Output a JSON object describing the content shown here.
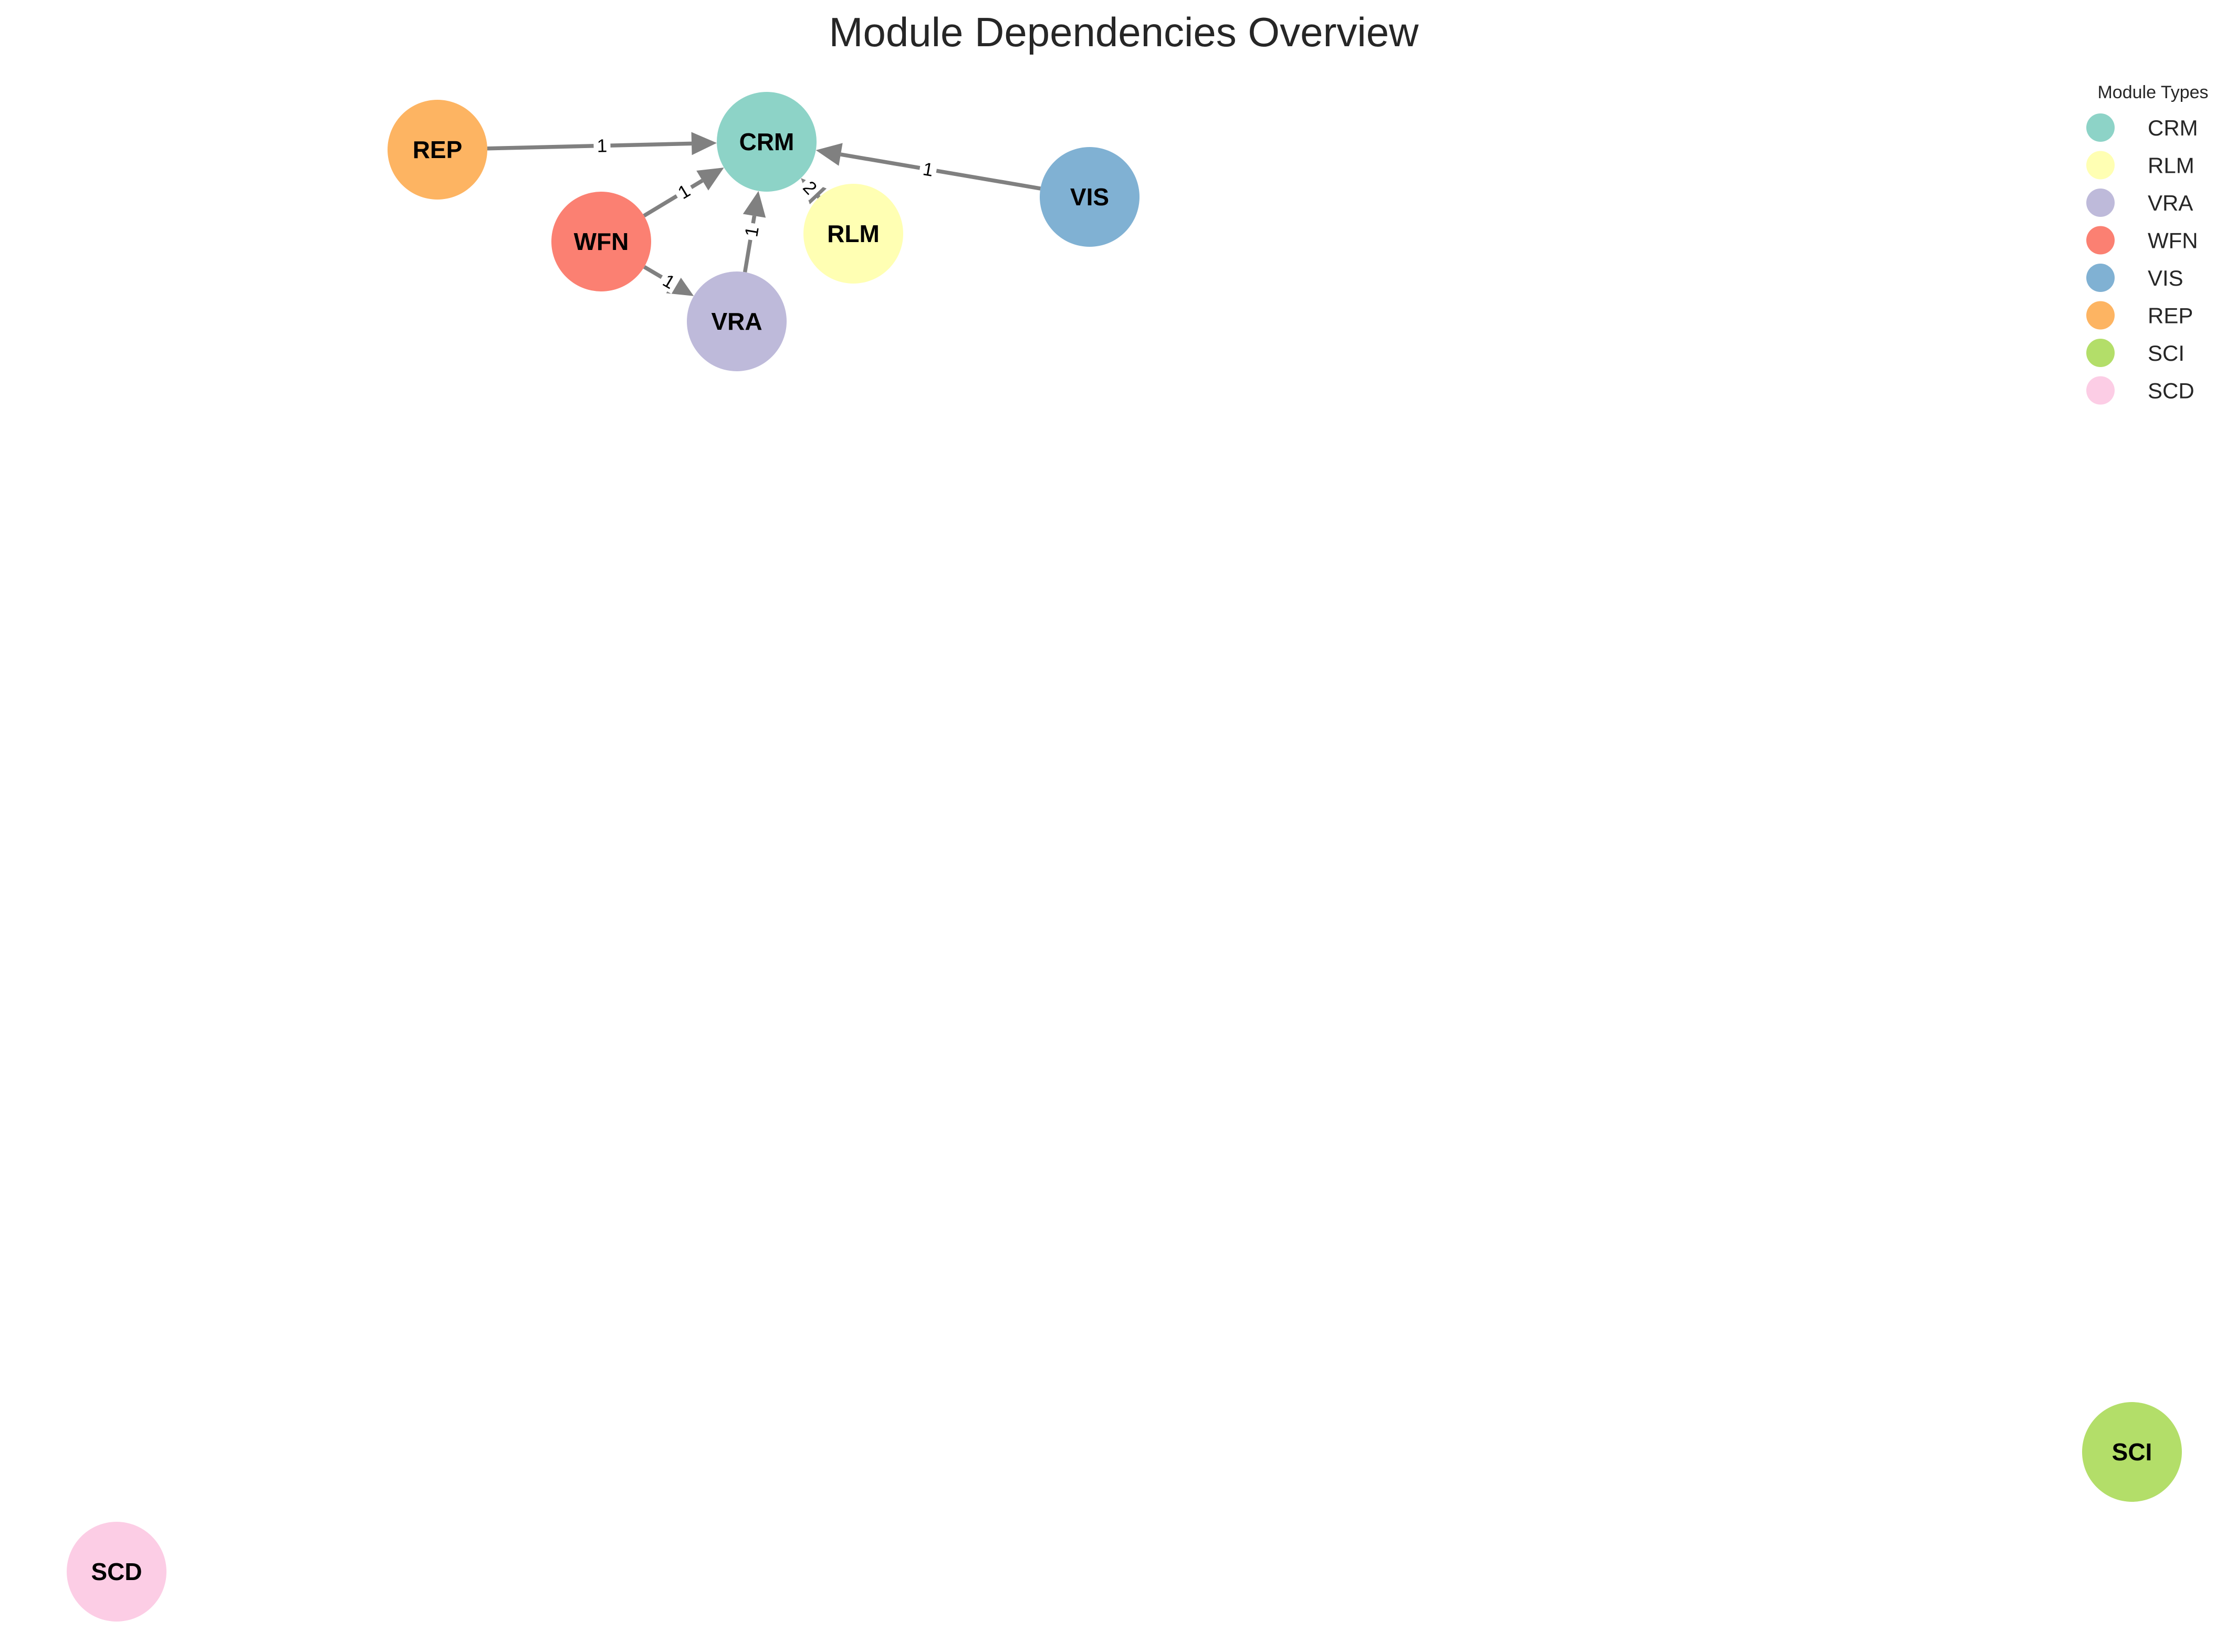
{
  "title": "Module Dependencies Overview",
  "legend": {
    "title": "Module Types",
    "items": [
      {
        "label": "CRM",
        "color": "#8dd3c7"
      },
      {
        "label": "RLM",
        "color": "#ffffb3"
      },
      {
        "label": "VRA",
        "color": "#bebada"
      },
      {
        "label": "WFN",
        "color": "#fb8072"
      },
      {
        "label": "VIS",
        "color": "#80b1d3"
      },
      {
        "label": "REP",
        "color": "#fdb462"
      },
      {
        "label": "SCI",
        "color": "#b3de69"
      },
      {
        "label": "SCD",
        "color": "#fccde5"
      }
    ]
  },
  "nodes": [
    {
      "id": "CRM",
      "label": "CRM",
      "color": "#8dd3c7"
    },
    {
      "id": "RLM",
      "label": "RLM",
      "color": "#ffffb3"
    },
    {
      "id": "VRA",
      "label": "VRA",
      "color": "#bebada"
    },
    {
      "id": "WFN",
      "label": "WFN",
      "color": "#fb8072"
    },
    {
      "id": "VIS",
      "label": "VIS",
      "color": "#80b1d3"
    },
    {
      "id": "REP",
      "label": "REP",
      "color": "#fdb462"
    },
    {
      "id": "SCI",
      "label": "SCI",
      "color": "#b3de69"
    },
    {
      "id": "SCD",
      "label": "SCD",
      "color": "#fccde5"
    }
  ],
  "edges": [
    {
      "from": "REP",
      "to": "CRM",
      "label": "1"
    },
    {
      "from": "VIS",
      "to": "CRM",
      "label": "1"
    },
    {
      "from": "WFN",
      "to": "CRM",
      "label": "1"
    },
    {
      "from": "VRA",
      "to": "CRM",
      "label": "1"
    },
    {
      "from": "WFN",
      "to": "VRA",
      "label": "1"
    },
    {
      "from": "RLM",
      "to": "CRM",
      "label": "2"
    }
  ],
  "edge_color": "#808080"
}
